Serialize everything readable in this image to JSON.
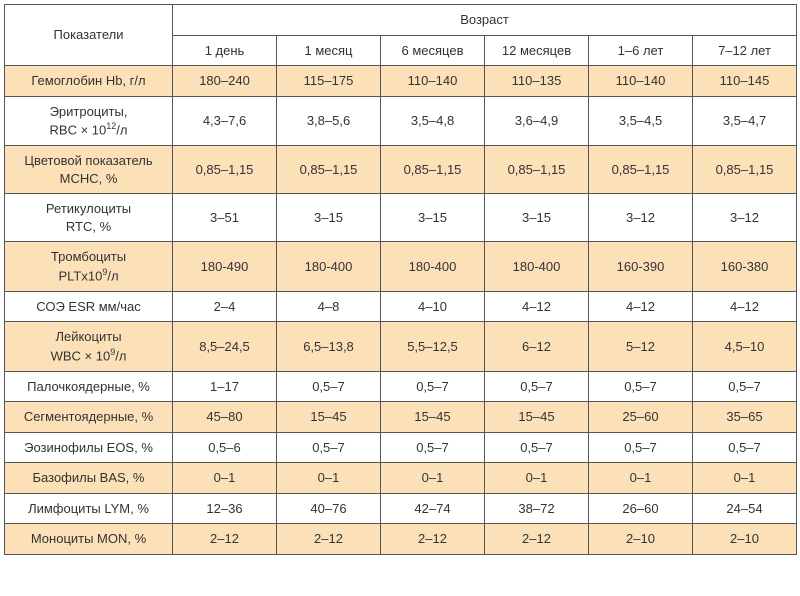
{
  "colors": {
    "row_shade": "#fce0b8",
    "border": "#555555",
    "text": "#333333",
    "background": "#ffffff"
  },
  "header": {
    "param_label": "Показатели",
    "age_label": "Возраст",
    "ages": [
      "1 день",
      "1 месяц",
      "6 месяцев",
      "12 месяцев",
      "1–6 лет",
      "7–12 лет"
    ]
  },
  "rows": [
    {
      "label": "Гемоглобин Hb, г/л",
      "vals": [
        "180–240",
        "115–175",
        "110–140",
        "110–135",
        "110–140",
        "110–145"
      ]
    },
    {
      "label": "Эритроциты,\nRBC × 10¹²/л",
      "vals": [
        "4,3–7,6",
        "3,8–5,6",
        "3,5–4,8",
        "3,6–4,9",
        "3,5–4,5",
        "3,5–4,7"
      ]
    },
    {
      "label": "Цветовой показатель\nMCHC, %",
      "vals": [
        "0,85–1,15",
        "0,85–1,15",
        "0,85–1,15",
        "0,85–1,15",
        "0,85–1,15",
        "0,85–1,15"
      ]
    },
    {
      "label": "Ретикулоциты\nRTC, %",
      "vals": [
        "3–51",
        "3–15",
        "3–15",
        "3–15",
        "3–12",
        "3–12"
      ]
    },
    {
      "label": "Тромбоциты\nPLTx10⁹/л",
      "vals": [
        "180-490",
        "180-400",
        "180-400",
        "180-400",
        "160-390",
        "160-380"
      ]
    },
    {
      "label": "СОЭ ESR мм/час",
      "vals": [
        "2–4",
        "4–8",
        "4–10",
        "4–12",
        "4–12",
        "4–12"
      ]
    },
    {
      "label": "Лейкоциты\nWBC × 10⁹/л",
      "vals": [
        "8,5–24,5",
        "6,5–13,8",
        "5,5–12,5",
        "6–12",
        "5–12",
        "4,5–10"
      ]
    },
    {
      "label": "Палочкоядерные, %",
      "vals": [
        "1–17",
        "0,5–7",
        "0,5–7",
        "0,5–7",
        "0,5–7",
        "0,5–7"
      ]
    },
    {
      "label": "Сегментоядерные, %",
      "vals": [
        "45–80",
        "15–45",
        "15–45",
        "15–45",
        "25–60",
        "35–65"
      ]
    },
    {
      "label": "Эозинофилы EOS, %",
      "vals": [
        "0,5–6",
        "0,5–7",
        "0,5–7",
        "0,5–7",
        "0,5–7",
        "0,5–7"
      ]
    },
    {
      "label": "Базофилы BAS, %",
      "vals": [
        "0–1",
        "0–1",
        "0–1",
        "0–1",
        "0–1",
        "0–1"
      ]
    },
    {
      "label": "Лимфоциты LYM, %",
      "vals": [
        "12–36",
        "40–76",
        "42–74",
        "38–72",
        "26–60",
        "24–54"
      ]
    },
    {
      "label": "Моноциты MON, %",
      "vals": [
        "2–12",
        "2–12",
        "2–12",
        "2–12",
        "2–10",
        "2–10"
      ]
    }
  ]
}
